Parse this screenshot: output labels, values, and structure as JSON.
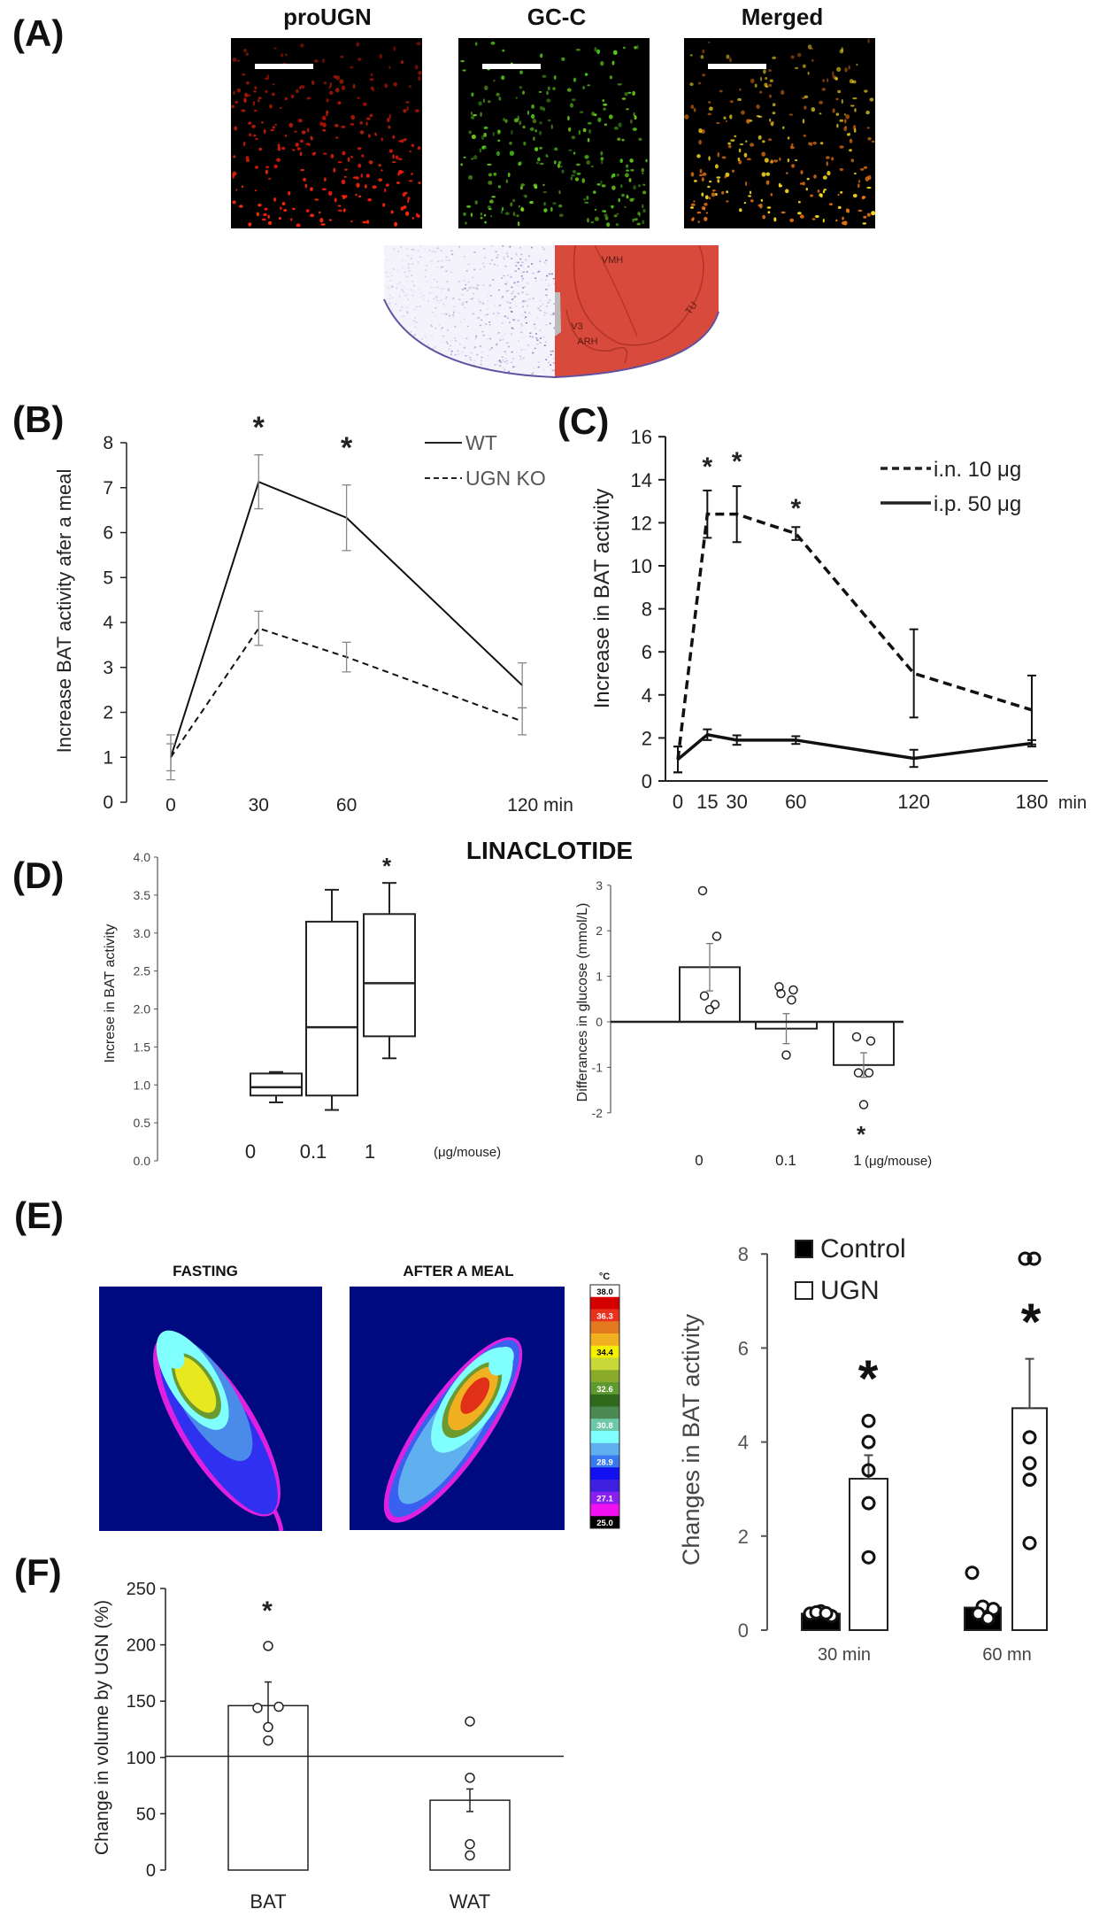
{
  "panel_labels": {
    "A": "(A)",
    "B": "(B)",
    "C": "(C)",
    "D": "(D)",
    "E": "(E)",
    "F": "(F)"
  },
  "panel_a": {
    "channels": [
      "proUGN",
      "GC-C",
      "Merged"
    ],
    "channel_colors": [
      "#ff2010",
      "#60e020",
      "#f0c020"
    ],
    "atlas_labels": {
      "vmh": "VMH",
      "tu": "TU",
      "v3": "V3",
      "arh": "ARH"
    }
  },
  "panel_d": {
    "title": "LINACLOTIDE"
  },
  "panel_e": {
    "conditions": [
      "FASTING",
      "AFTER A MEAL"
    ],
    "colorbar": {
      "unit": "°C",
      "labels": [
        "38.0",
        "36.3",
        "34.4",
        "32.6",
        "30.8",
        "28.9",
        "27.1",
        "25.0"
      ],
      "colors": [
        "#ffffff",
        "#d40000",
        "#e8321e",
        "#e37a20",
        "#f0b020",
        "#f5f000",
        "#c8d838",
        "#8aaa2a",
        "#5f9a30",
        "#2f6a1c",
        "#4a8a50",
        "#6ec8a8",
        "#80ffff",
        "#60b0f0",
        "#3a78f0",
        "#1010f0",
        "#4020e0",
        "#8a20f0",
        "#f010f0",
        "#000000"
      ]
    }
  },
  "chart_data": [
    {
      "panel": "B",
      "type": "line",
      "xlabel": "",
      "ylabel": "Increase BAT activity afer a meal",
      "x": [
        0,
        30,
        60,
        120
      ],
      "x_tick_labels": [
        "0",
        "30",
        "60",
        "120 min"
      ],
      "ylim": [
        0,
        8
      ],
      "y_tick_labels": [
        "0",
        "1",
        "2",
        "3",
        "4",
        "5",
        "6",
        "7",
        "8"
      ],
      "series": [
        {
          "name": "WT",
          "style": "solid",
          "values": [
            1.0,
            7.13,
            6.33,
            2.6
          ],
          "errors": [
            0.5,
            0.6,
            0.73,
            0.5
          ]
        },
        {
          "name": "UGN KO",
          "style": "dashed",
          "values": [
            1.0,
            3.87,
            3.23,
            1.8
          ],
          "errors": [
            0.3,
            0.38,
            0.33,
            0.3
          ]
        }
      ],
      "significance": [
        {
          "x": 30,
          "label": "*"
        },
        {
          "x": 60,
          "label": "*"
        }
      ],
      "legend": "top-right",
      "grid": false
    },
    {
      "panel": "C",
      "type": "line",
      "xlabel": "",
      "ylabel": "Increase in BAT activity",
      "x": [
        0,
        15,
        30,
        60,
        120,
        180
      ],
      "x_tick_labels": [
        "0",
        "15",
        "30",
        "60",
        "120",
        "180"
      ],
      "x_unit": "min",
      "ylim": [
        0,
        16
      ],
      "y_tick_labels": [
        "0",
        "2",
        "4",
        "6",
        "8",
        "10",
        "12",
        "14",
        "16"
      ],
      "series": [
        {
          "name": "i.n. 10  μg",
          "style": "dashed",
          "values": [
            1.0,
            12.4,
            12.4,
            11.5,
            5.0,
            3.3
          ],
          "errors": [
            0.6,
            1.1,
            1.3,
            0.3,
            2.05,
            1.6
          ]
        },
        {
          "name": "i.p. 50  μg",
          "style": "solid",
          "values": [
            1.0,
            2.15,
            1.9,
            1.9,
            1.05,
            1.75
          ],
          "errors": [
            0.6,
            0.25,
            0.22,
            0.18,
            0.4,
            0.15
          ]
        }
      ],
      "significance": [
        {
          "x": 15,
          "label": "*"
        },
        {
          "x": 30,
          "label": "*"
        },
        {
          "x": 60,
          "label": "*"
        }
      ],
      "legend": "top-right",
      "grid": false
    },
    {
      "panel": "D-left",
      "type": "box",
      "xlabel": "",
      "ylabel": "Increse in BAT activity",
      "categories": [
        "0",
        "0.1",
        "1"
      ],
      "x_unit": "(μg/mouse)",
      "ylim": [
        0,
        4
      ],
      "y_tick_labels": [
        "0.0",
        "0.5",
        "1.0",
        "1.5",
        "2.0",
        "2.5",
        "3.0",
        "3.5",
        "4.0"
      ],
      "boxes": [
        {
          "min": 0.77,
          "q1": 0.86,
          "median": 0.97,
          "q3": 1.15,
          "max": 1.17
        },
        {
          "min": 0.67,
          "q1": 0.86,
          "median": 1.76,
          "q3": 3.15,
          "max": 3.57
        },
        {
          "min": 1.35,
          "q1": 1.64,
          "median": 2.34,
          "q3": 3.25,
          "max": 3.66
        }
      ],
      "significance": [
        {
          "category": "1",
          "label": "*"
        }
      ]
    },
    {
      "panel": "D-right",
      "type": "bar",
      "xlabel": "",
      "ylabel": "Differances in glucose (mmol/L)",
      "categories": [
        "0",
        "0.1",
        "1"
      ],
      "x_unit": "(μg/mouse)",
      "ylim": [
        -2,
        3
      ],
      "y_tick_labels": [
        "-2",
        "-1",
        "0",
        "1",
        "2",
        "3"
      ],
      "values": [
        1.2,
        -0.15,
        -0.95
      ],
      "errors": [
        0.52,
        0.33,
        0.27
      ],
      "points": [
        [
          2.88,
          1.88,
          0.57,
          0.38,
          0.27
        ],
        [
          0.77,
          0.7,
          0.62,
          0.48,
          -0.73
        ],
        [
          -0.33,
          -0.42,
          -1.12,
          -1.12,
          -1.82
        ]
      ],
      "significance": [
        {
          "category": "1",
          "label": "*"
        }
      ]
    },
    {
      "panel": "E",
      "type": "bar",
      "xlabel": "",
      "ylabel": "Changes in BAT activity",
      "categories": [
        "30 min",
        "60 mn"
      ],
      "ylim": [
        0,
        8
      ],
      "y_tick_labels": [
        "0",
        "2",
        "4",
        "6",
        "8"
      ],
      "series": [
        {
          "name": "Control",
          "fill": "#000000",
          "values": [
            0.35,
            0.48
          ],
          "errors": [
            0.02,
            0.18
          ],
          "points": [
            [
              0.35,
              0.4,
              0.3,
              0.38,
              0.36
            ],
            [
              1.22,
              0.5,
              0.45,
              0.35,
              0.25
            ]
          ]
        },
        {
          "name": "UGN",
          "fill": "#ffffff",
          "values": [
            3.22,
            4.72
          ],
          "errors": [
            0.5,
            1.05
          ],
          "points": [
            [
              4.45,
              4.0,
              3.4,
              2.7,
              1.55
            ],
            [
              7.9,
              7.9,
              4.1,
              3.55,
              3.2,
              1.85
            ]
          ]
        }
      ],
      "significance": [
        {
          "category": "30 min",
          "label": "*"
        },
        {
          "category": "60 mn",
          "label": "*"
        }
      ],
      "legend": "top-left"
    },
    {
      "panel": "F",
      "type": "bar",
      "xlabel": "",
      "ylabel": "Change in volume by UGN (%)",
      "categories": [
        "BAT",
        "WAT"
      ],
      "ylim": [
        0,
        250
      ],
      "y_tick_labels": [
        "0",
        "50",
        "100",
        "150",
        "200",
        "250"
      ],
      "values": [
        146,
        62
      ],
      "errors": [
        21,
        10
      ],
      "points": [
        [
          199,
          144,
          145,
          127,
          115
        ],
        [
          132,
          82,
          23,
          13
        ]
      ],
      "reference_line": 101,
      "significance": [
        {
          "category": "BAT",
          "label": "*"
        }
      ]
    }
  ]
}
